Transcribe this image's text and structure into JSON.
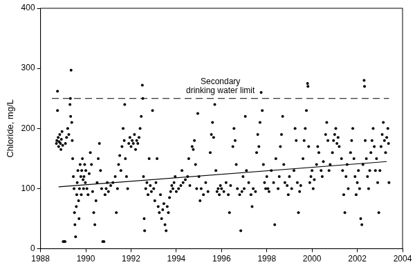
{
  "chart_data": {
    "type": "scatter",
    "y_label": "Chloride, mg/L",
    "xlim": [
      1988,
      2004
    ],
    "xticks": [
      1988,
      1990,
      1992,
      1994,
      1996,
      1998,
      2000,
      2002,
      2004
    ],
    "ylim": [
      0,
      400
    ],
    "yticks": [
      0,
      100,
      200,
      300,
      400
    ],
    "grid": false,
    "series": [
      {
        "type": "scatter",
        "color": "#000000",
        "marker": "circle",
        "x": [
          1988.7,
          1988.72,
          1988.75,
          1988.75,
          1988.78,
          1988.8,
          1988.82,
          1988.85,
          1988.88,
          1988.9,
          1988.92,
          1988.95,
          1988.98,
          1989.0,
          1989.05,
          1989.08,
          1989.1,
          1989.15,
          1989.2,
          1989.25,
          1989.3,
          1989.32,
          1989.35,
          1989.33,
          1989.38,
          1989.4,
          1989.42,
          1989.45,
          1989.48,
          1989.5,
          1989.52,
          1989.55,
          1989.58,
          1989.6,
          1989.62,
          1989.65,
          1989.68,
          1989.7,
          1989.72,
          1989.75,
          1989.78,
          1989.8,
          1989.82,
          1989.85,
          1989.88,
          1989.9,
          1989.92,
          1989.95,
          1989.98,
          1990.0,
          1990.05,
          1990.1,
          1990.15,
          1990.2,
          1990.25,
          1990.3,
          1990.35,
          1990.4,
          1990.45,
          1990.5,
          1990.55,
          1990.6,
          1990.65,
          1990.7,
          1990.75,
          1990.8,
          1990.85,
          1990.9,
          1990.95,
          1991.0,
          1991.1,
          1991.2,
          1991.3,
          1991.35,
          1991.4,
          1991.45,
          1991.5,
          1991.55,
          1991.6,
          1991.65,
          1991.7,
          1991.72,
          1991.75,
          1991.8,
          1991.85,
          1991.9,
          1991.95,
          1992.0,
          1992.05,
          1992.1,
          1992.15,
          1992.2,
          1992.25,
          1992.3,
          1992.35,
          1992.4,
          1992.45,
          1992.5,
          1992.52,
          1992.55,
          1992.58,
          1992.6,
          1992.65,
          1992.7,
          1992.75,
          1992.8,
          1992.85,
          1992.9,
          1992.95,
          1993.0,
          1993.05,
          1993.1,
          1993.15,
          1993.2,
          1993.25,
          1993.3,
          1993.35,
          1993.4,
          1993.45,
          1993.5,
          1993.55,
          1993.6,
          1993.65,
          1993.7,
          1993.75,
          1993.8,
          1993.85,
          1993.9,
          1993.95,
          1994.0,
          1994.1,
          1994.2,
          1994.25,
          1994.3,
          1994.4,
          1994.5,
          1994.55,
          1994.6,
          1994.7,
          1994.75,
          1994.8,
          1994.85,
          1994.9,
          1994.95,
          1995.0,
          1995.05,
          1995.1,
          1995.2,
          1995.3,
          1995.4,
          1995.5,
          1995.55,
          1995.6,
          1995.65,
          1995.7,
          1995.75,
          1995.8,
          1995.85,
          1995.9,
          1995.95,
          1996.0,
          1996.1,
          1996.2,
          1996.3,
          1996.35,
          1996.4,
          1996.5,
          1996.55,
          1996.6,
          1996.65,
          1996.7,
          1996.8,
          1996.85,
          1996.9,
          1996.95,
          1997.0,
          1997.05,
          1997.1,
          1997.2,
          1997.3,
          1997.35,
          1997.4,
          1997.5,
          1997.55,
          1997.6,
          1997.65,
          1997.7,
          1997.75,
          1997.8,
          1997.85,
          1997.9,
          1997.95,
          1998.0,
          1998.05,
          1998.1,
          1998.2,
          1998.3,
          1998.35,
          1998.4,
          1998.5,
          1998.55,
          1998.6,
          1998.65,
          1998.7,
          1998.75,
          1998.8,
          1998.9,
          1998.95,
          1999.0,
          1999.1,
          1999.2,
          1999.25,
          1999.3,
          1999.35,
          1999.4,
          1999.45,
          1999.5,
          1999.6,
          1999.65,
          1999.7,
          1999.75,
          1999.8,
          1999.82,
          1999.85,
          1999.9,
          1999.95,
          2000.0,
          2000.05,
          2000.1,
          2000.2,
          2000.25,
          2000.3,
          2000.4,
          2000.45,
          2000.5,
          2000.6,
          2000.65,
          2000.7,
          2000.75,
          2000.8,
          2000.9,
          2000.95,
          2001.0,
          2001.05,
          2001.1,
          2001.15,
          2001.2,
          2001.3,
          2001.35,
          2001.4,
          2001.45,
          2001.5,
          2001.55,
          2001.6,
          2001.7,
          2001.75,
          2001.8,
          2001.85,
          2001.9,
          2001.95,
          2002.0,
          2002.05,
          2002.1,
          2002.15,
          2002.2,
          2002.25,
          2002.3,
          2002.32,
          2002.35,
          2002.4,
          2002.45,
          2002.5,
          2002.55,
          2002.6,
          2002.65,
          2002.7,
          2002.75,
          2002.8,
          2002.85,
          2002.9,
          2002.95,
          2003.0,
          2003.05,
          2003.1,
          2003.15,
          2003.2,
          2003.25,
          2003.3,
          2003.35,
          2003.38,
          2003.4
        ],
        "values": [
          175,
          180,
          262,
          230,
          185,
          170,
          178,
          190,
          175,
          165,
          182,
          195,
          172,
          12,
          12,
          12,
          175,
          185,
          200,
          190,
          240,
          250,
          297,
          220,
          210,
          180,
          150,
          120,
          100,
          60,
          40,
          20,
          70,
          90,
          110,
          130,
          80,
          50,
          100,
          140,
          120,
          90,
          130,
          150,
          115,
          100,
          120,
          140,
          110,
          130,
          100,
          90,
          125,
          160,
          140,
          95,
          60,
          40,
          80,
          110,
          150,
          175,
          130,
          100,
          12,
          12,
          90,
          100,
          110,
          95,
          105,
          110,
          120,
          60,
          100,
          140,
          155,
          130,
          170,
          200,
          180,
          240,
          150,
          120,
          100,
          175,
          185,
          170,
          180,
          175,
          190,
          165,
          180,
          175,
          185,
          200,
          220,
          272,
          250,
          120,
          50,
          30,
          100,
          110,
          90,
          150,
          105,
          95,
          230,
          100,
          80,
          110,
          150,
          70,
          60,
          90,
          50,
          65,
          75,
          40,
          30,
          70,
          60,
          85,
          95,
          105,
          100,
          110,
          120,
          95,
          100,
          105,
          130,
          110,
          115,
          120,
          150,
          105,
          170,
          165,
          180,
          140,
          100,
          225,
          120,
          80,
          100,
          90,
          110,
          95,
          160,
          190,
          210,
          185,
          240,
          130,
          95,
          100,
          90,
          105,
          100,
          95,
          110,
          90,
          60,
          105,
          170,
          200,
          180,
          140,
          100,
          90,
          30,
          95,
          120,
          100,
          220,
          130,
          110,
          90,
          70,
          100,
          95,
          160,
          190,
          170,
          210,
          260,
          230,
          140,
          110,
          100,
          120,
          100,
          95,
          130,
          110,
          40,
          150,
          100,
          120,
          170,
          190,
          220,
          140,
          110,
          105,
          90,
          120,
          100,
          130,
          200,
          180,
          110,
          60,
          95,
          105,
          150,
          180,
          200,
          230,
          275,
          270,
          170,
          110,
          120,
          130,
          100,
          115,
          140,
          170,
          160,
          130,
          120,
          145,
          190,
          210,
          180,
          130,
          140,
          160,
          180,
          190,
          200,
          175,
          185,
          170,
          150,
          130,
          90,
          60,
          120,
          140,
          100,
          160,
          180,
          200,
          150,
          120,
          90,
          110,
          130,
          100,
          50,
          40,
          140,
          280,
          270,
          180,
          150,
          120,
          100,
          130,
          160,
          180,
          200,
          170,
          130,
          150,
          110,
          60,
          130,
          170,
          190,
          210,
          180,
          160,
          185,
          200,
          175,
          110
        ]
      },
      {
        "type": "line",
        "color": "#000000",
        "line_style": "solid",
        "x": [
          1988.8,
          2003.3
        ],
        "values": [
          103,
          145
        ]
      },
      {
        "type": "line",
        "name": "Secondary drinking water limit",
        "color": "#000000",
        "line_style": "dashed",
        "x": [
          1988.5,
          2003.4
        ],
        "values": [
          250,
          250
        ]
      }
    ]
  }
}
